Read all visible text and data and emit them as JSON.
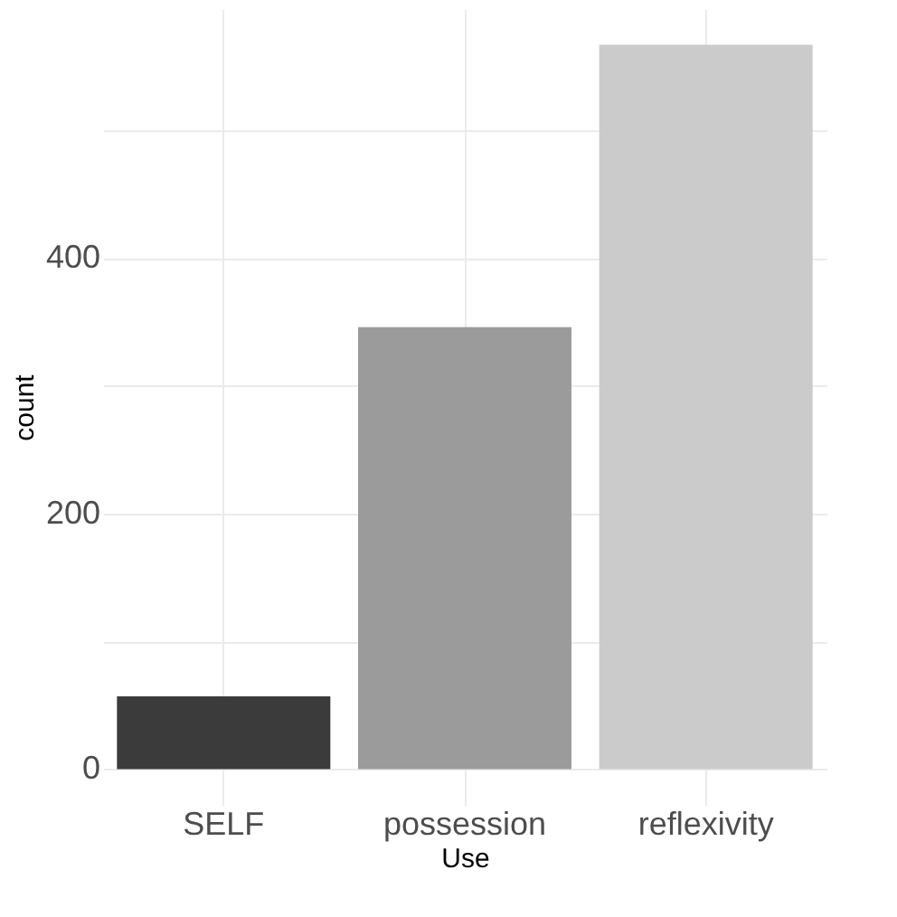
{
  "chart_data": {
    "type": "bar",
    "xlabel": "Use",
    "ylabel": "count",
    "categories": [
      "SELF",
      "possession",
      "reflexivity"
    ],
    "values": [
      57,
      346,
      567
    ],
    "colors": [
      "#3b3b3b",
      "#9b9b9b",
      "#cbcbcb"
    ],
    "ylim": [
      -28,
      595
    ],
    "yticks": [
      0,
      {
        "value": 100,
        "label": null
      },
      200,
      {
        "value": 300,
        "label": null
      },
      400,
      {
        "value": 500,
        "label": null
      }
    ],
    "grid": true
  }
}
